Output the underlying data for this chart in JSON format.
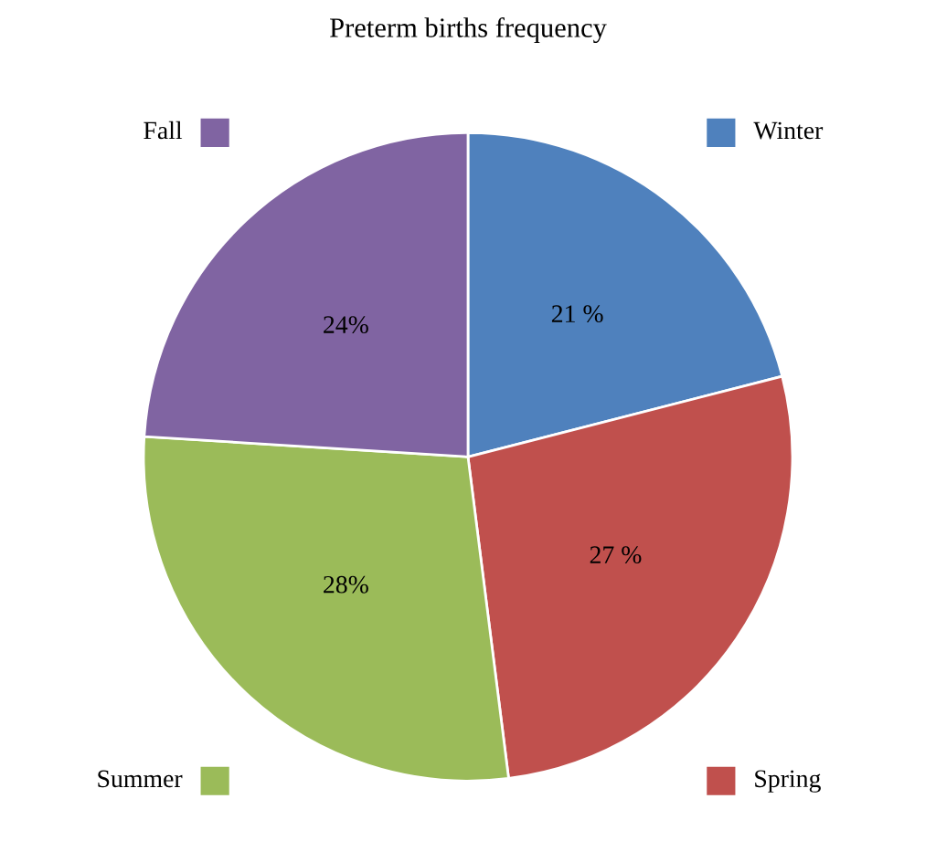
{
  "chart_data": {
    "type": "pie",
    "title": "Preterm births frequency",
    "categories": [
      "Winter",
      "Spring",
      "Summer",
      "Fall"
    ],
    "values": [
      21,
      27,
      28,
      24
    ],
    "colors": [
      "#4f81bd",
      "#c0504d",
      "#9bbb59",
      "#8064a2"
    ],
    "value_labels": [
      "21 %",
      "27 %",
      "28%",
      "24%"
    ],
    "legend": "right"
  }
}
